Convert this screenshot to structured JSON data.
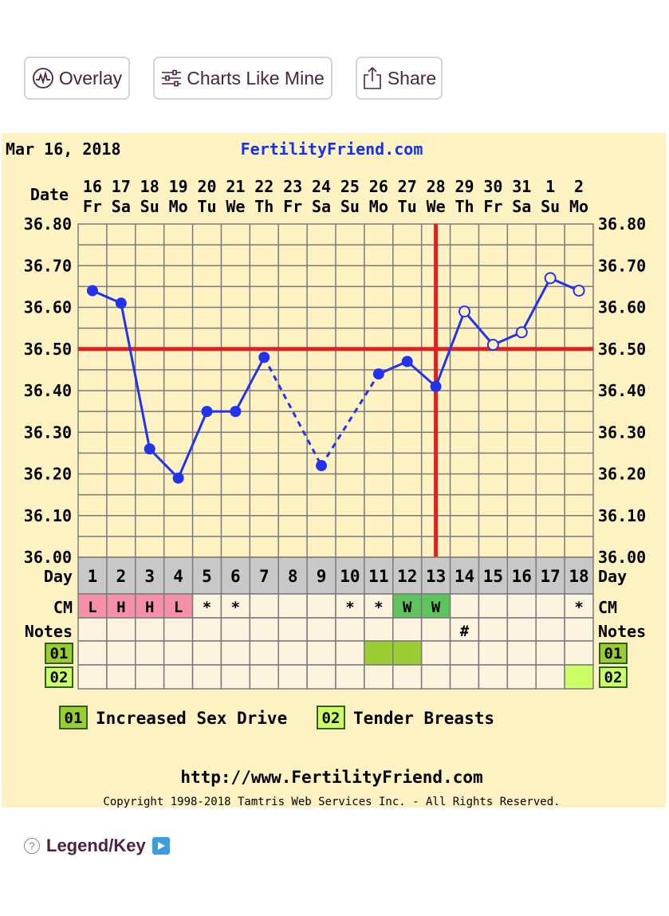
{
  "buttons": {
    "overlay": "Overlay",
    "charts_like_mine": "Charts Like Mine",
    "share": "Share"
  },
  "legend_link": "Legend/Key",
  "chart_data": {
    "type": "line",
    "header_date": "Mar 16, 2018",
    "site": "FertilityFriend.com",
    "footer_url": "http://www.FertilityFriend.com",
    "copyright": "Copyright 1998-2018 Tamtris Web Services Inc. - All Rights Reserved.",
    "row_labels": {
      "date": "Date",
      "day": "Day",
      "cm": "CM",
      "notes": "Notes"
    },
    "dates": [
      "16",
      "17",
      "18",
      "19",
      "20",
      "21",
      "22",
      "23",
      "24",
      "25",
      "26",
      "27",
      "28",
      "29",
      "30",
      "31",
      "1",
      "2"
    ],
    "weekdays": [
      "Fr",
      "Sa",
      "Su",
      "Mo",
      "Tu",
      "We",
      "Th",
      "Fr",
      "Sa",
      "Su",
      "Mo",
      "Tu",
      "We",
      "Th",
      "Fr",
      "Sa",
      "Su",
      "Mo"
    ],
    "days": [
      "1",
      "2",
      "3",
      "4",
      "5",
      "6",
      "7",
      "8",
      "9",
      "10",
      "11",
      "12",
      "13",
      "14",
      "15",
      "16",
      "17",
      "18"
    ],
    "y_ticks": [
      "36.80",
      "36.70",
      "36.60",
      "36.50",
      "36.40",
      "36.30",
      "36.20",
      "36.10",
      "36.00"
    ],
    "ylim": [
      36.0,
      36.8
    ],
    "temps": [
      36.64,
      36.61,
      36.26,
      36.19,
      36.35,
      36.35,
      36.48,
      null,
      36.22,
      null,
      36.44,
      36.47,
      36.41,
      36.59,
      36.51,
      36.54,
      36.67,
      36.64
    ],
    "open_points_from_day": 14,
    "coverline": 36.5,
    "ovulation_line_after_day": 13,
    "cm": [
      "L",
      "H",
      "H",
      "L",
      "*",
      "*",
      "",
      "",
      "",
      "*",
      "*",
      "W",
      "W",
      "",
      "",
      "",
      "",
      "*"
    ],
    "cm_colors": {
      "L": "#f590a8",
      "H": "#f590a8",
      "W": "#5ec45e"
    },
    "notes": [
      "",
      "",
      "",
      "",
      "",
      "",
      "",
      "",
      "",
      "",
      "",
      "",
      "",
      "#",
      "",
      "",
      "",
      ""
    ],
    "symptoms": [
      {
        "code": "01",
        "label": "Increased Sex Drive",
        "color": "#9acd32",
        "days": [
          11,
          12
        ]
      },
      {
        "code": "02",
        "label": "Tender Breasts",
        "color": "#ccff66",
        "days": [
          18
        ]
      }
    ],
    "colors": {
      "background": "#fff2c2",
      "grid": "#7a7a7a",
      "temp_line": "#2233ee",
      "coverline": "#e21f1f",
      "site": "#1133ee"
    }
  }
}
